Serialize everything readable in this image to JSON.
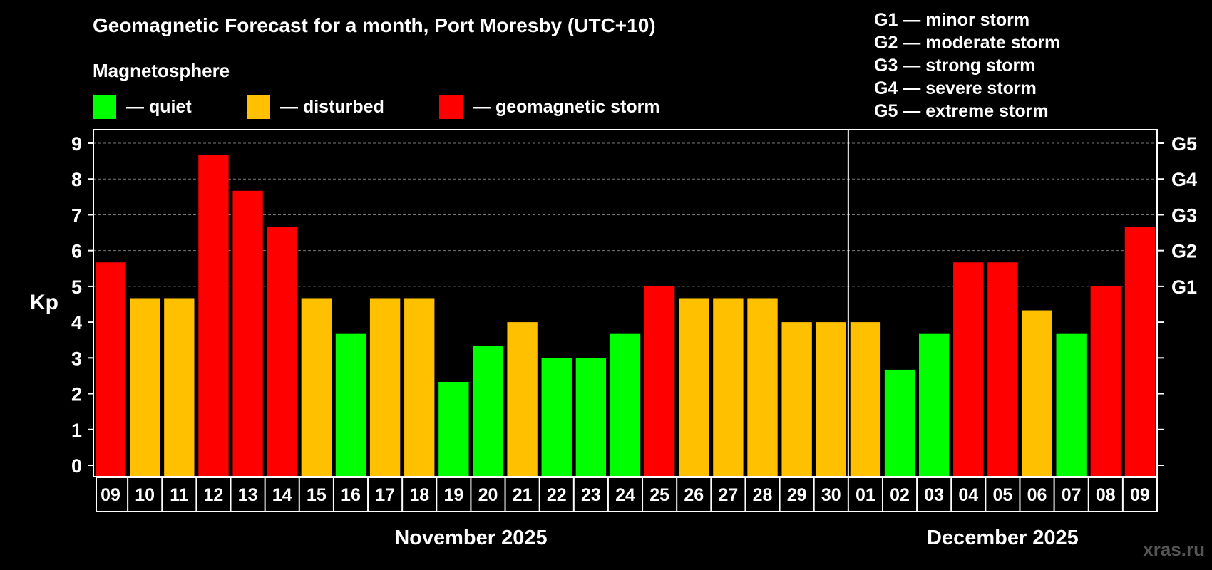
{
  "chart_data": {
    "type": "bar",
    "title": "Geomagnetic Forecast for a month, Port Moresby (UTC+10)",
    "ylabel": "Kp",
    "ylim": [
      0,
      9
    ],
    "yticks": [
      "0",
      "1",
      "2",
      "3",
      "4",
      "5",
      "6",
      "7",
      "8",
      "9"
    ],
    "g_scale_ticks": [
      {
        "kp": 5,
        "label": "G1"
      },
      {
        "kp": 6,
        "label": "G2"
      },
      {
        "kp": 7,
        "label": "G3"
      },
      {
        "kp": 8,
        "label": "G4"
      },
      {
        "kp": 9,
        "label": "G5"
      }
    ],
    "months": [
      {
        "label": "November 2025",
        "days": 22
      },
      {
        "label": "December 2025",
        "days": 9
      }
    ],
    "categories": [
      "09",
      "10",
      "11",
      "12",
      "13",
      "14",
      "15",
      "16",
      "17",
      "18",
      "19",
      "20",
      "21",
      "22",
      "23",
      "24",
      "25",
      "26",
      "27",
      "28",
      "29",
      "30",
      "01",
      "02",
      "03",
      "04",
      "05",
      "06",
      "07",
      "08",
      "09"
    ],
    "values": [
      5.67,
      4.67,
      4.67,
      8.67,
      7.67,
      6.67,
      4.67,
      3.67,
      4.67,
      4.67,
      2.33,
      3.33,
      4.0,
      3.0,
      3.0,
      3.67,
      5.0,
      4.67,
      4.67,
      4.67,
      4.0,
      4.0,
      4.0,
      2.67,
      3.67,
      5.67,
      5.67,
      4.33,
      3.67,
      5.0,
      6.67
    ],
    "status": [
      "storm",
      "disturbed",
      "disturbed",
      "storm",
      "storm",
      "storm",
      "disturbed",
      "quiet",
      "disturbed",
      "disturbed",
      "quiet",
      "quiet",
      "disturbed",
      "quiet",
      "quiet",
      "quiet",
      "storm",
      "disturbed",
      "disturbed",
      "disturbed",
      "disturbed",
      "disturbed",
      "disturbed",
      "quiet",
      "quiet",
      "storm",
      "storm",
      "disturbed",
      "quiet",
      "storm",
      "storm"
    ],
    "grid": true
  },
  "magnetosphere": {
    "label": "Magnetosphere",
    "legend": [
      {
        "key": "quiet",
        "label": "— quiet",
        "color": "#00ff00"
      },
      {
        "key": "disturbed",
        "label": "— disturbed",
        "color": "#ffc000"
      },
      {
        "key": "storm",
        "label": "— geomagnetic storm",
        "color": "#ff0000"
      }
    ]
  },
  "g_legend": [
    "G1 — minor storm",
    "G2 — moderate storm",
    "G3 — strong storm",
    "G4 — severe storm",
    "G5 — extreme storm"
  ],
  "watermark": "xras.ru"
}
